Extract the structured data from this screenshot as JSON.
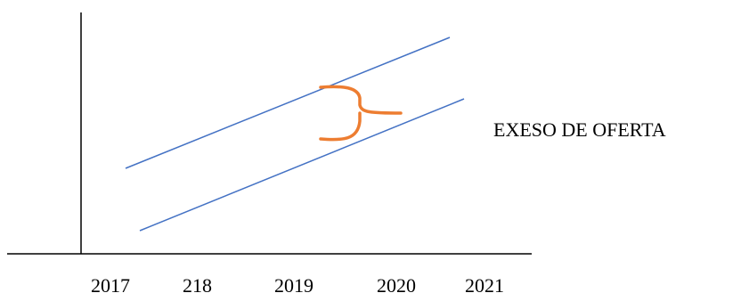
{
  "diagram": {
    "annotation": "EXESO DE OFERTA",
    "x_ticks": [
      "2017",
      "218",
      "2019",
      "2020",
      "2021"
    ],
    "colors": {
      "axis": "#000000",
      "lines": "#4472C4",
      "brace": "#ED7D31",
      "text": "#000000"
    }
  }
}
